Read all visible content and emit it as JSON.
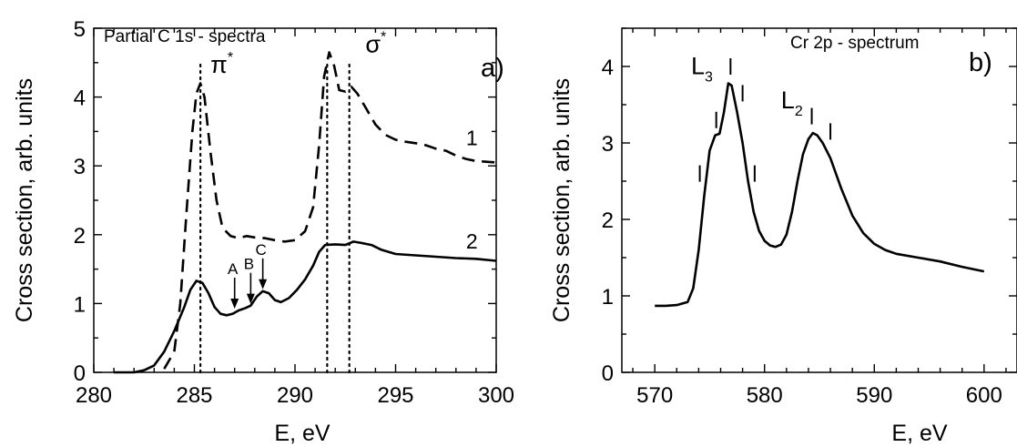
{
  "colors": {
    "ink": "#000000",
    "background": "#ffffff"
  },
  "chart_data": [
    {
      "type": "line",
      "panel": "a)",
      "title": "Partial C 1s - spectra",
      "xlabel": "E, eV",
      "ylabel": "Cross section, arb. units",
      "xlim": [
        280,
        300
      ],
      "ylim": [
        0,
        5
      ],
      "xticks": [
        280,
        285,
        290,
        295,
        300
      ],
      "yticks": [
        0,
        1,
        2,
        3,
        4,
        5
      ],
      "series": [
        {
          "name": "1",
          "style": "dashed",
          "points": [
            [
              283.5,
              0.05
            ],
            [
              284.0,
              0.3
            ],
            [
              284.3,
              1.0
            ],
            [
              284.6,
              2.3
            ],
            [
              284.9,
              3.5
            ],
            [
              285.1,
              4.05
            ],
            [
              285.3,
              4.2
            ],
            [
              285.5,
              4.0
            ],
            [
              285.8,
              3.2
            ],
            [
              286.1,
              2.5
            ],
            [
              286.4,
              2.1
            ],
            [
              286.8,
              1.98
            ],
            [
              287.2,
              1.95
            ],
            [
              287.6,
              1.98
            ],
            [
              288.0,
              1.96
            ],
            [
              288.5,
              1.95
            ],
            [
              289.0,
              1.92
            ],
            [
              289.5,
              1.9
            ],
            [
              290.0,
              1.92
            ],
            [
              290.5,
              2.05
            ],
            [
              290.9,
              2.4
            ],
            [
              291.2,
              3.3
            ],
            [
              291.45,
              4.3
            ],
            [
              291.7,
              4.65
            ],
            [
              291.95,
              4.45
            ],
            [
              292.2,
              4.1
            ],
            [
              292.5,
              4.08
            ],
            [
              292.8,
              4.15
            ],
            [
              293.1,
              4.05
            ],
            [
              293.5,
              3.85
            ],
            [
              294.0,
              3.6
            ],
            [
              294.5,
              3.45
            ],
            [
              295.0,
              3.38
            ],
            [
              295.5,
              3.35
            ],
            [
              296.0,
              3.33
            ],
            [
              296.5,
              3.3
            ],
            [
              297.0,
              3.25
            ],
            [
              297.5,
              3.22
            ],
            [
              298.0,
              3.15
            ],
            [
              298.5,
              3.1
            ],
            [
              299.0,
              3.07
            ],
            [
              299.5,
              3.06
            ],
            [
              300.0,
              3.05
            ]
          ]
        },
        {
          "name": "2",
          "style": "solid",
          "points": [
            [
              281.0,
              0.0
            ],
            [
              282.0,
              0.0
            ],
            [
              282.5,
              0.03
            ],
            [
              283.0,
              0.1
            ],
            [
              283.5,
              0.3
            ],
            [
              284.0,
              0.6
            ],
            [
              284.5,
              0.95
            ],
            [
              284.8,
              1.2
            ],
            [
              285.1,
              1.33
            ],
            [
              285.4,
              1.3
            ],
            [
              285.7,
              1.15
            ],
            [
              286.0,
              0.95
            ],
            [
              286.3,
              0.85
            ],
            [
              286.6,
              0.83
            ],
            [
              286.9,
              0.85
            ],
            [
              287.2,
              0.9
            ],
            [
              287.5,
              0.93
            ],
            [
              287.8,
              0.97
            ],
            [
              288.1,
              1.1
            ],
            [
              288.4,
              1.18
            ],
            [
              288.7,
              1.15
            ],
            [
              289.0,
              1.05
            ],
            [
              289.3,
              1.02
            ],
            [
              289.7,
              1.08
            ],
            [
              290.1,
              1.2
            ],
            [
              290.5,
              1.35
            ],
            [
              290.9,
              1.55
            ],
            [
              291.2,
              1.75
            ],
            [
              291.5,
              1.85
            ],
            [
              292.0,
              1.86
            ],
            [
              292.5,
              1.85
            ],
            [
              292.9,
              1.9
            ],
            [
              293.3,
              1.88
            ],
            [
              293.8,
              1.85
            ],
            [
              294.3,
              1.78
            ],
            [
              295.0,
              1.72
            ],
            [
              296.0,
              1.7
            ],
            [
              297.0,
              1.68
            ],
            [
              298.0,
              1.66
            ],
            [
              299.0,
              1.65
            ],
            [
              300.0,
              1.62
            ]
          ]
        }
      ],
      "vlines": [
        285.3,
        291.6,
        292.7
      ],
      "peak_labels": [
        {
          "text": "π",
          "sup": "*",
          "x": 285.8,
          "y": 4.35
        },
        {
          "text": "σ",
          "sup": "*",
          "x": 293.5,
          "y": 4.65
        }
      ],
      "arrows": [
        {
          "label": "A",
          "x": 287.0,
          "y": 0.9
        },
        {
          "label": "B",
          "x": 287.8,
          "y": 0.97
        },
        {
          "label": "C",
          "x": 288.4,
          "y": 1.18
        }
      ],
      "curve_labels": [
        {
          "text": "1",
          "x": 298.5,
          "y": 3.3
        },
        {
          "text": "2",
          "x": 298.5,
          "y": 1.8
        }
      ]
    },
    {
      "type": "line",
      "panel": "b)",
      "title": "Cr 2p - spectrum",
      "xlabel": "E, eV",
      "ylabel": "Cross section, arb. units",
      "xlim": [
        567,
        603
      ],
      "ylim": [
        0,
        4.5
      ],
      "xticks": [
        570,
        580,
        590,
        600
      ],
      "yticks": [
        0,
        1,
        2,
        3,
        4
      ],
      "series": [
        {
          "name": "",
          "style": "solid",
          "points": [
            [
              570.0,
              0.87
            ],
            [
              571.0,
              0.87
            ],
            [
              572.0,
              0.88
            ],
            [
              573.0,
              0.92
            ],
            [
              573.5,
              1.1
            ],
            [
              574.0,
              1.6
            ],
            [
              574.5,
              2.3
            ],
            [
              575.0,
              2.9
            ],
            [
              575.5,
              3.1
            ],
            [
              575.9,
              3.12
            ],
            [
              576.3,
              3.4
            ],
            [
              576.7,
              3.78
            ],
            [
              577.0,
              3.75
            ],
            [
              577.5,
              3.4
            ],
            [
              578.0,
              3.0
            ],
            [
              578.5,
              2.5
            ],
            [
              579.0,
              2.1
            ],
            [
              579.5,
              1.85
            ],
            [
              580.0,
              1.72
            ],
            [
              580.5,
              1.66
            ],
            [
              581.0,
              1.64
            ],
            [
              581.5,
              1.67
            ],
            [
              582.0,
              1.8
            ],
            [
              582.5,
              2.1
            ],
            [
              583.0,
              2.5
            ],
            [
              583.5,
              2.85
            ],
            [
              584.0,
              3.05
            ],
            [
              584.4,
              3.13
            ],
            [
              584.8,
              3.1
            ],
            [
              585.3,
              3.0
            ],
            [
              586.0,
              2.8
            ],
            [
              587.0,
              2.4
            ],
            [
              588.0,
              2.05
            ],
            [
              589.0,
              1.82
            ],
            [
              590.0,
              1.68
            ],
            [
              591.0,
              1.6
            ],
            [
              592.0,
              1.55
            ],
            [
              594.0,
              1.5
            ],
            [
              596.0,
              1.45
            ],
            [
              598.0,
              1.38
            ],
            [
              600.0,
              1.32
            ]
          ]
        }
      ],
      "peak_labels": [
        {
          "text": "L",
          "sub": "3",
          "x": 573.3,
          "y": 3.9
        },
        {
          "text": "L",
          "sub": "2",
          "x": 581.5,
          "y": 3.45
        }
      ],
      "ticks_on_curve": [
        {
          "x": 574.1,
          "y": 2.6
        },
        {
          "x": 575.6,
          "y": 3.3
        },
        {
          "x": 576.9,
          "y": 4.0
        },
        {
          "x": 578.0,
          "y": 3.65
        },
        {
          "x": 579.1,
          "y": 2.6
        },
        {
          "x": 584.3,
          "y": 3.35
        },
        {
          "x": 586.0,
          "y": 3.15
        }
      ]
    }
  ]
}
